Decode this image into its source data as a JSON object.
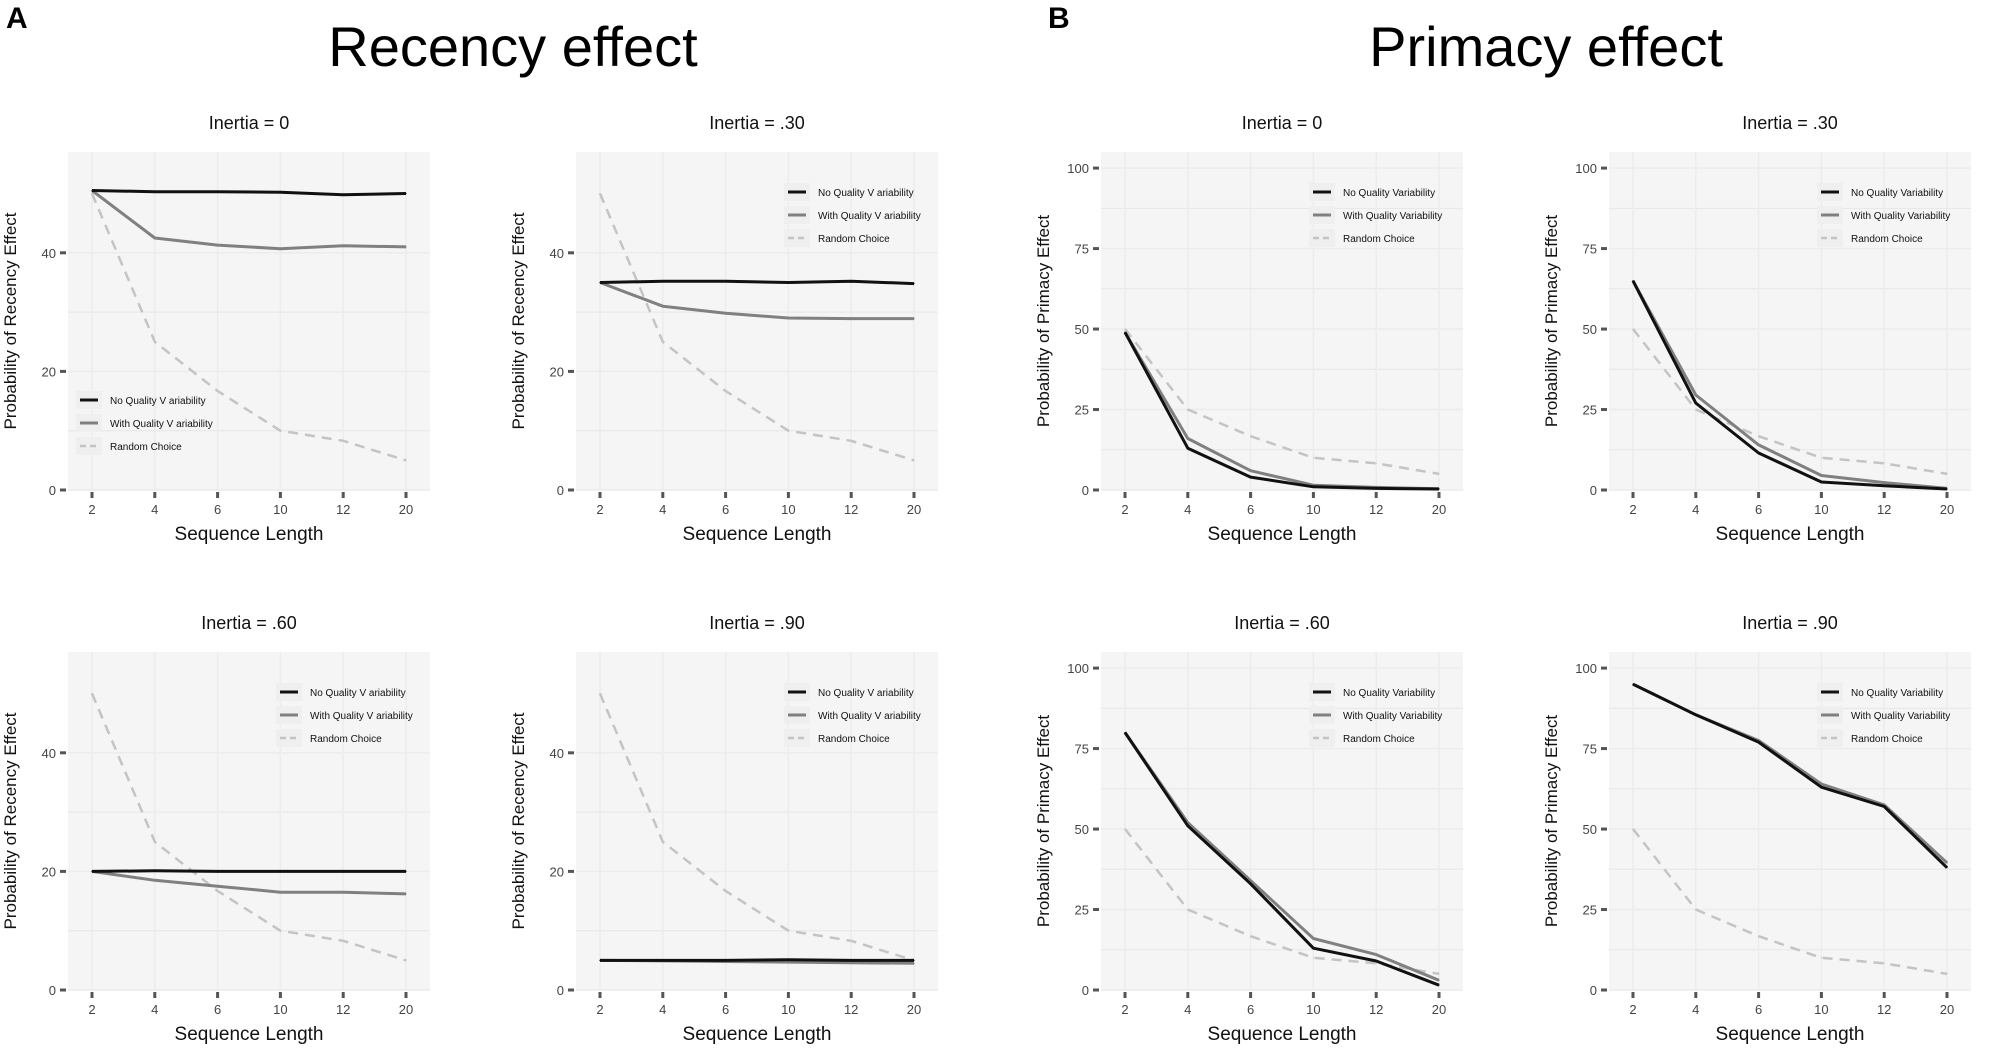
{
  "figure": {
    "panel_a_letter": "A",
    "panel_b_letter": "B",
    "recency_title": "Recency effect",
    "primacy_title": "Primacy effect"
  },
  "colors": {
    "panel_bg": "#f5f5f5",
    "grid": "#ffffff",
    "no_quality": "#111111",
    "with_quality": "#808080",
    "random": "#c4c4c4",
    "tick": "#555555"
  },
  "chart_data": [
    {
      "type": "line",
      "group": "recency",
      "title": "Inertia = 0",
      "xlabel": "Sequence Length",
      "ylabel": "Probability of Recency Effect",
      "categories": [
        "2",
        "4",
        "6",
        "10",
        "12",
        "20"
      ],
      "ylim": [
        0,
        57
      ],
      "yticks": [
        0,
        20,
        40
      ],
      "legend": "bottom-left",
      "series": [
        {
          "name": "No Quality V ariability",
          "key": "nq",
          "values": [
            50.5,
            50.3,
            50.3,
            50.2,
            49.8,
            50
          ]
        },
        {
          "name": "With Quality V ariability",
          "key": "wq",
          "values": [
            50.5,
            42.5,
            41.3,
            40.7,
            41.2,
            41
          ]
        },
        {
          "name": "Random Choice",
          "key": "rc",
          "values": [
            50,
            25,
            16.7,
            10,
            8.3,
            5
          ]
        }
      ]
    },
    {
      "type": "line",
      "group": "recency",
      "title": "Inertia = .30",
      "xlabel": "Sequence Length",
      "ylabel": "Probability of Recency Effect",
      "categories": [
        "2",
        "4",
        "6",
        "10",
        "12",
        "20"
      ],
      "ylim": [
        0,
        57
      ],
      "yticks": [
        0,
        20,
        40
      ],
      "legend": "top-right",
      "series": [
        {
          "name": "No Quality V ariability",
          "key": "nq",
          "values": [
            35,
            35.2,
            35.2,
            35,
            35.2,
            34.8
          ]
        },
        {
          "name": "With Quality V ariability",
          "key": "wq",
          "values": [
            35,
            31,
            29.8,
            29,
            28.9,
            28.9
          ]
        },
        {
          "name": "Random Choice",
          "key": "rc",
          "values": [
            50,
            25,
            16.7,
            10,
            8.3,
            5
          ]
        }
      ]
    },
    {
      "type": "line",
      "group": "primacy",
      "title": "Inertia = 0",
      "xlabel": "Sequence Length",
      "ylabel": "Probability of Primacy Effect",
      "categories": [
        "2",
        "4",
        "6",
        "10",
        "12",
        "20"
      ],
      "ylim": [
        0,
        105
      ],
      "yticks": [
        0,
        25,
        50,
        75,
        100
      ],
      "legend": "top-right",
      "series": [
        {
          "name": "No Quality Variability",
          "key": "nq",
          "values": [
            49,
            13,
            4,
            1,
            0.5,
            0.3
          ]
        },
        {
          "name": "With Quality Variability",
          "key": "wq",
          "values": [
            49,
            16,
            6,
            1.5,
            0.8,
            0.4
          ]
        },
        {
          "name": "Random Choice",
          "key": "rc",
          "values": [
            50,
            25,
            16.7,
            10,
            8.3,
            5
          ]
        }
      ]
    },
    {
      "type": "line",
      "group": "primacy",
      "title": "Inertia = .30",
      "xlabel": "Sequence Length",
      "ylabel": "Probability of Primacy Effect",
      "categories": [
        "2",
        "4",
        "6",
        "10",
        "12",
        "20"
      ],
      "ylim": [
        0,
        105
      ],
      "yticks": [
        0,
        25,
        50,
        75,
        100
      ],
      "legend": "top-right",
      "series": [
        {
          "name": "No Quality Variability",
          "key": "nq",
          "values": [
            65,
            27,
            11.5,
            2.5,
            1.3,
            0.3
          ]
        },
        {
          "name": "With Quality Variability",
          "key": "wq",
          "values": [
            65,
            29.5,
            14,
            4.5,
            2.3,
            0.5
          ]
        },
        {
          "name": "Random Choice",
          "key": "rc",
          "values": [
            50,
            25,
            16.7,
            10,
            8.3,
            5
          ]
        }
      ]
    },
    {
      "type": "line",
      "group": "recency",
      "title": "Inertia = .60",
      "xlabel": "Sequence Length",
      "ylabel": "Probability of Recency Effect",
      "categories": [
        "2",
        "4",
        "6",
        "10",
        "12",
        "20"
      ],
      "ylim": [
        0,
        57
      ],
      "yticks": [
        0,
        20,
        40
      ],
      "legend": "top-right",
      "series": [
        {
          "name": "No Quality V ariability",
          "key": "nq",
          "values": [
            20,
            20.1,
            20,
            20,
            20,
            20
          ]
        },
        {
          "name": "With Quality V ariability",
          "key": "wq",
          "values": [
            20,
            18.5,
            17.5,
            16.5,
            16.5,
            16.2
          ]
        },
        {
          "name": "Random Choice",
          "key": "rc",
          "values": [
            50,
            25,
            16.7,
            10,
            8.3,
            5
          ]
        }
      ]
    },
    {
      "type": "line",
      "group": "recency",
      "title": "Inertia = .90",
      "xlabel": "Sequence Length",
      "ylabel": "Probability of Recency Effect",
      "categories": [
        "2",
        "4",
        "6",
        "10",
        "12",
        "20"
      ],
      "ylim": [
        0,
        57
      ],
      "yticks": [
        0,
        20,
        40
      ],
      "legend": "top-right",
      "series": [
        {
          "name": "No Quality V ariability",
          "key": "nq",
          "values": [
            5,
            5,
            5,
            5.1,
            5,
            5
          ]
        },
        {
          "name": "With Quality V ariability",
          "key": "wq",
          "values": [
            5,
            4.9,
            4.8,
            4.7,
            4.6,
            4.5
          ]
        },
        {
          "name": "Random Choice",
          "key": "rc",
          "values": [
            50,
            25,
            16.7,
            10,
            8.3,
            5
          ]
        }
      ]
    },
    {
      "type": "line",
      "group": "primacy",
      "title": "Inertia = .60",
      "xlabel": "Sequence Length",
      "ylabel": "Probability of Primacy Effect",
      "categories": [
        "2",
        "4",
        "6",
        "10",
        "12",
        "20"
      ],
      "ylim": [
        0,
        105
      ],
      "yticks": [
        0,
        25,
        50,
        75,
        100
      ],
      "legend": "top-right",
      "series": [
        {
          "name": "No Quality Variability",
          "key": "nq",
          "values": [
            80,
            51,
            33,
            13,
            9,
            1.5
          ]
        },
        {
          "name": "With Quality Variability",
          "key": "wq",
          "values": [
            80,
            52,
            34,
            16,
            11,
            3
          ]
        },
        {
          "name": "Random Choice",
          "key": "rc",
          "values": [
            50,
            25,
            16.7,
            10,
            8.3,
            5
          ]
        }
      ]
    },
    {
      "type": "line",
      "group": "primacy",
      "title": "Inertia = .90",
      "xlabel": "Sequence Length",
      "ylabel": "Probability of Primacy Effect",
      "categories": [
        "2",
        "4",
        "6",
        "10",
        "12",
        "20"
      ],
      "ylim": [
        0,
        105
      ],
      "yticks": [
        0,
        25,
        50,
        75,
        100
      ],
      "legend": "top-right",
      "series": [
        {
          "name": "No Quality Variability",
          "key": "nq",
          "values": [
            95,
            85.5,
            77,
            63,
            57,
            38
          ]
        },
        {
          "name": "With Quality Variability",
          "key": "wq",
          "values": [
            95,
            85.5,
            77.5,
            64,
            57.5,
            39.5
          ]
        },
        {
          "name": "Random Choice",
          "key": "rc",
          "values": [
            50,
            25,
            16.7,
            10,
            8.3,
            5
          ]
        }
      ]
    }
  ]
}
